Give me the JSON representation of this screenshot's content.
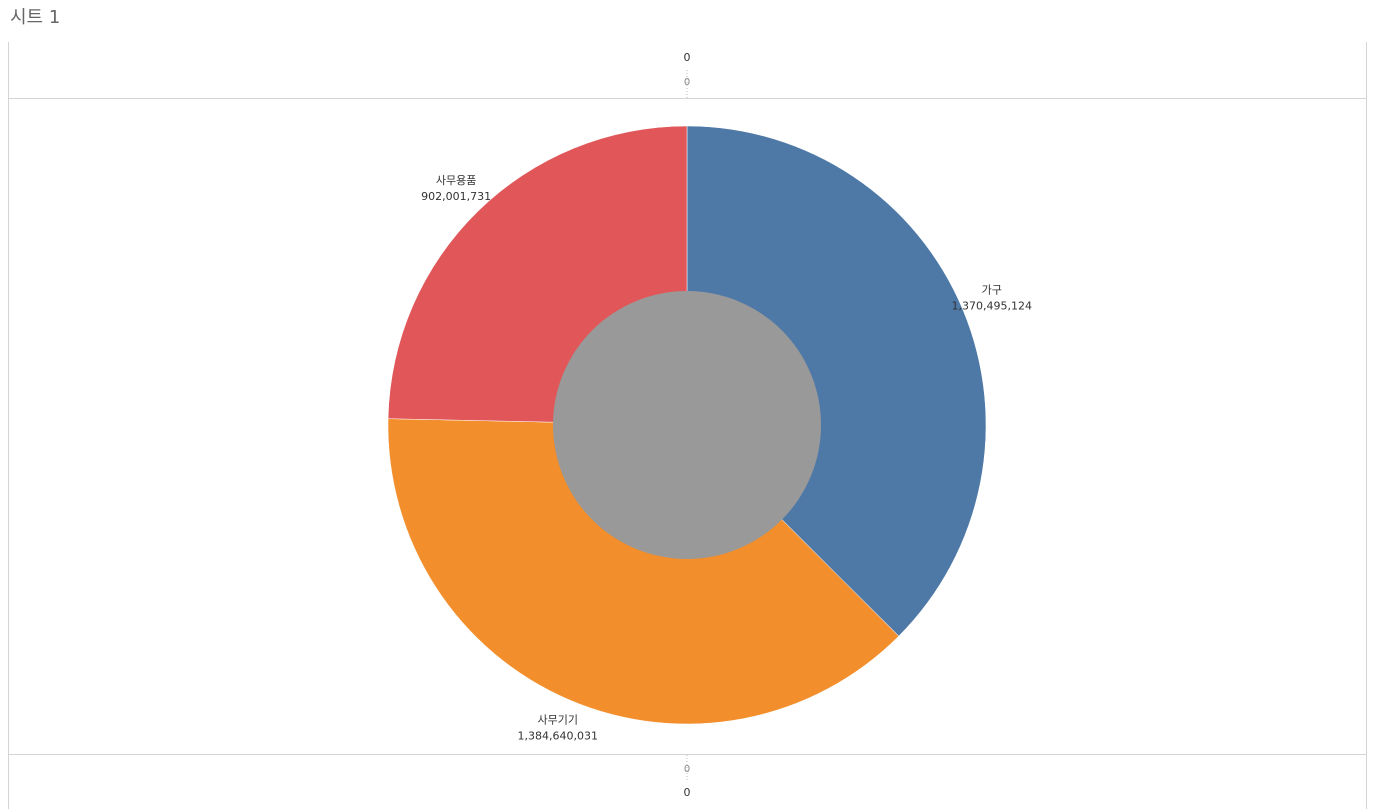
{
  "chart_data": {
    "type": "donut",
    "title": "시트 1",
    "categories": [
      "가구",
      "사무기기",
      "사무용품"
    ],
    "values": [
      1370495124,
      1384640031,
      902001731
    ],
    "value_labels": [
      "1,370,495,124",
      "1,384,640,031",
      "902,001,731"
    ],
    "colors": [
      "#4e79a7",
      "#f28e2b",
      "#e15759"
    ],
    "hole_color": "#999999",
    "header": "0",
    "xticks": [
      0
    ]
  }
}
